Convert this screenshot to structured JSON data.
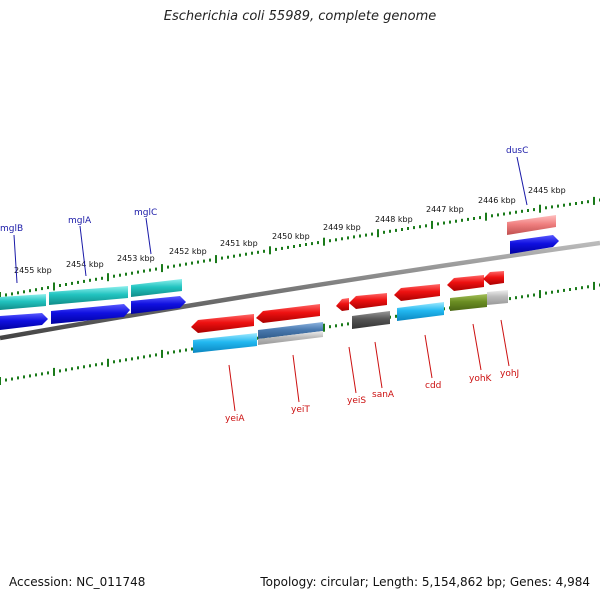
{
  "title": "Escherichia coli 55989, complete genome",
  "footer": {
    "accession": "Accession: NC_011748",
    "info": "Topology: circular; Length: 5,154,862 bp; Genes: 4,984"
  },
  "colors": {
    "forward_label": "#1a1aa8",
    "reverse_label": "#cc1111",
    "tick": "#1a7a1a",
    "backbone": "#808080"
  },
  "ruler_labels": [
    "2445 kbp",
    "2446 kbp",
    "2447 kbp",
    "2448 kbp",
    "2449 kbp",
    "2450 kbp",
    "2451 kbp",
    "2452 kbp",
    "2453 kbp",
    "2454 kbp",
    "2455 kbp"
  ],
  "forward_genes": [
    "dusC",
    "mglC",
    "mglA",
    "mglB"
  ],
  "reverse_genes": [
    "yeiA",
    "yeiT",
    "yeiS",
    "sanA",
    "cdd",
    "yohK",
    "yohJ"
  ]
}
